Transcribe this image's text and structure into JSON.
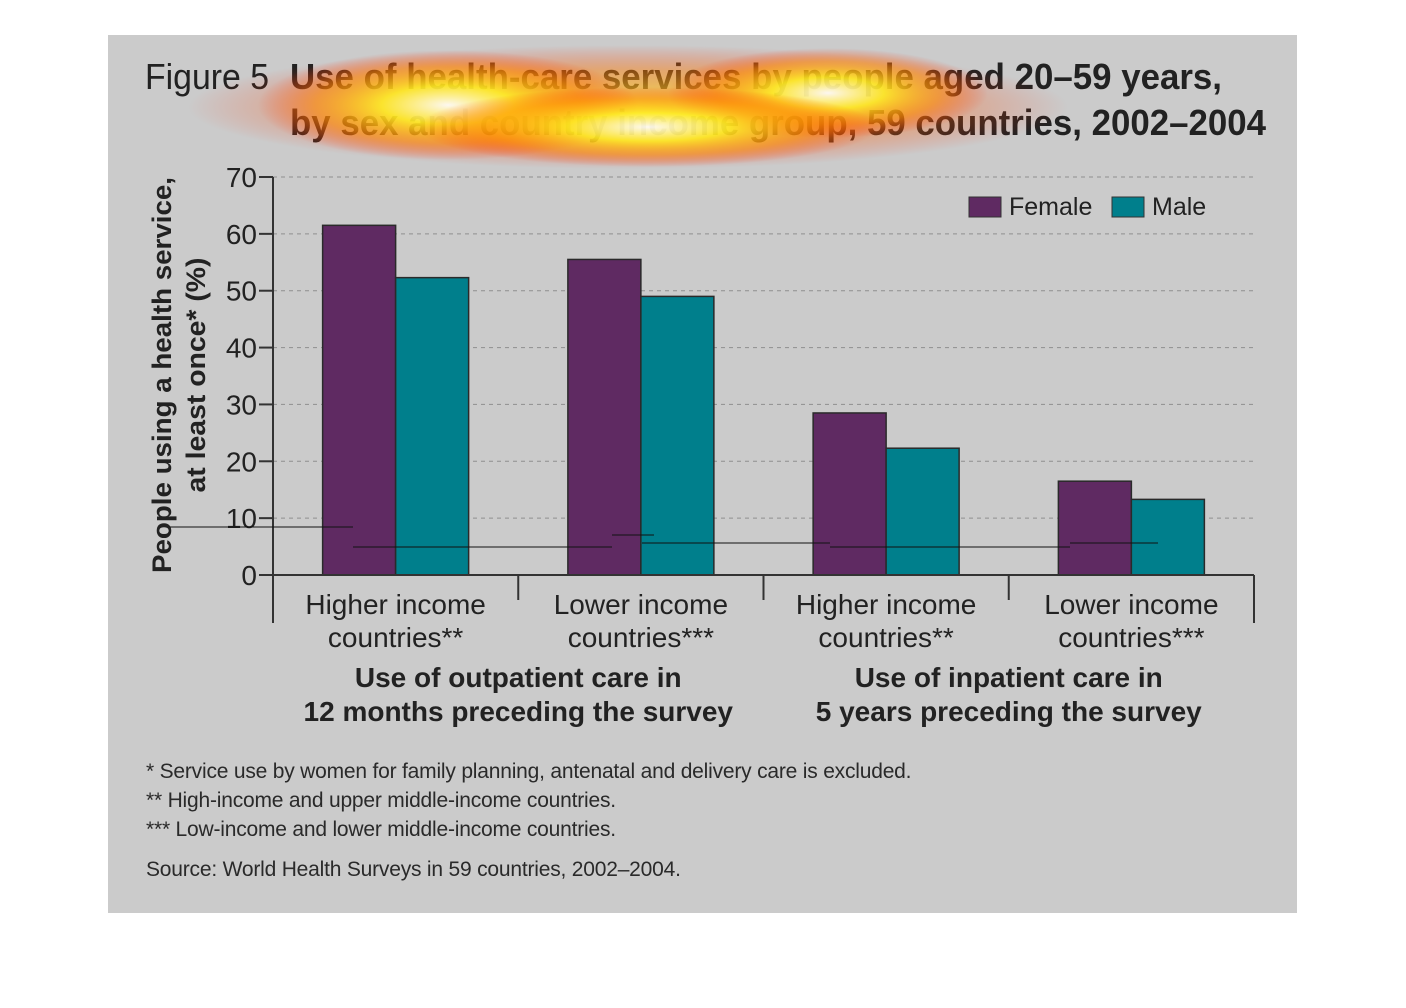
{
  "figure": {
    "label": "Figure 5",
    "title_line1": "Use of health-care services by people aged 20–59 years,",
    "title_line2": "by sex and country income group, 59 countries, 2002–2004"
  },
  "colors": {
    "background": "#cbcbcb",
    "female": "#5f2a62",
    "male": "#007f8c",
    "heatmap_overlay": "#ffe600"
  },
  "chart_data": {
    "type": "bar",
    "categories": [
      "Higher income countries**",
      "Lower income countries***",
      "Higher income countries**",
      "Lower income countries***"
    ],
    "category_lines": [
      [
        "Higher income",
        "countries**"
      ],
      [
        "Lower income",
        "countries***"
      ],
      [
        "Higher income",
        "countries**"
      ],
      [
        "Lower income",
        "countries***"
      ]
    ],
    "groups": [
      {
        "lines": [
          "Use of outpatient care in",
          "12 months preceding the survey"
        ],
        "categories": [
          0,
          1
        ]
      },
      {
        "lines": [
          "Use of inpatient care in",
          "5 years preceding the survey"
        ],
        "categories": [
          2,
          3
        ]
      }
    ],
    "series": [
      {
        "name": "Female",
        "values": [
          61.5,
          55.5,
          28.5,
          16.5
        ]
      },
      {
        "name": "Male",
        "values": [
          52.3,
          49.0,
          22.3,
          13.3
        ]
      }
    ],
    "ylabel_line1": "People using a health service,",
    "ylabel_line2": "at least once* (%)",
    "ylim": [
      0,
      70
    ],
    "yticks": [
      0,
      10,
      20,
      30,
      40,
      50,
      60,
      70
    ],
    "grid": true,
    "legend_position": "top-right"
  },
  "footnotes": [
    "* Service use by women for family planning, antenatal and delivery care is excluded.",
    "** High-income and upper middle-income countries.",
    "*** Low-income and lower middle-income countries."
  ],
  "source": "Source: World Health Surveys in 59 countries, 2002–2004."
}
